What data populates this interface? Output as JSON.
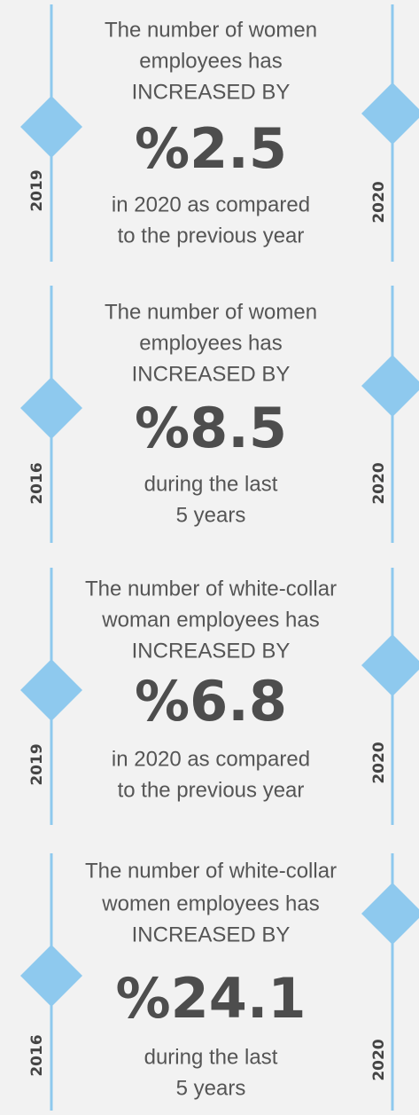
{
  "cards": [
    {
      "start_year": "2019",
      "end_year": "2020",
      "intro": [
        "The number of women",
        "employees has",
        "INCREASED BY"
      ],
      "value": "%2.5",
      "outro": [
        "in 2020 as compared",
        "to the previous year"
      ]
    },
    {
      "start_year": "2016",
      "end_year": "2020",
      "intro": [
        "The number of women",
        "employees has",
        "INCREASED BY"
      ],
      "value": "%8.5",
      "outro": [
        "during the last",
        "5 years"
      ]
    },
    {
      "start_year": "2019",
      "end_year": "2020",
      "intro": [
        "The number of white-collar",
        "woman employees has",
        "INCREASED BY"
      ],
      "value": "%6.8",
      "outro": [
        "in 2020 as compared",
        "to the previous year"
      ]
    },
    {
      "start_year": "2016",
      "end_year": "2020",
      "intro": [
        "The number of white-collar",
        "women employees has",
        "INCREASED BY"
      ],
      "value": "%24.1",
      "outro": [
        "during the last",
        "5 years"
      ]
    }
  ]
}
